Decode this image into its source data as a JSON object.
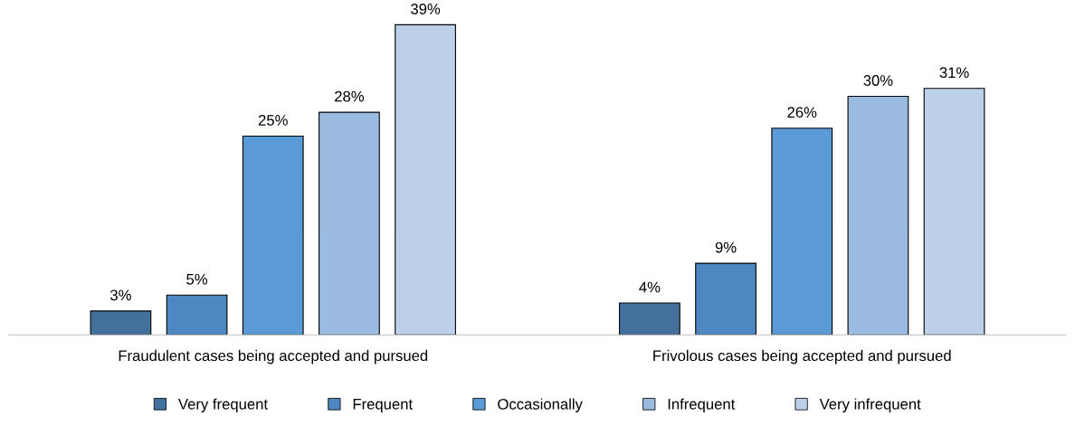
{
  "chart_data": {
    "type": "bar",
    "categories": [
      "Fraudulent cases being accepted and pursued",
      "Frivolous cases being accepted and pursued"
    ],
    "series": [
      {
        "name": "Very frequent",
        "color": "#43709d",
        "values": [
          3,
          4
        ],
        "value_labels": [
          "3%",
          "4%"
        ]
      },
      {
        "name": "Frequent",
        "color": "#4e88c2",
        "values": [
          5,
          9
        ],
        "value_labels": [
          "5%",
          "9%"
        ]
      },
      {
        "name": "Occasionally",
        "color": "#5b9bd5",
        "values": [
          25,
          26
        ],
        "value_labels": [
          "25%",
          "26%"
        ]
      },
      {
        "name": "Infrequent",
        "color": "#9bbbe0",
        "values": [
          28,
          30
        ],
        "value_labels": [
          "28%",
          "30%"
        ]
      },
      {
        "name": "Very infrequent",
        "color": "#bdd0ea",
        "values": [
          39,
          31
        ],
        "value_labels": [
          "39%",
          "31%"
        ]
      }
    ],
    "legend": "bottom",
    "grid": false
  }
}
